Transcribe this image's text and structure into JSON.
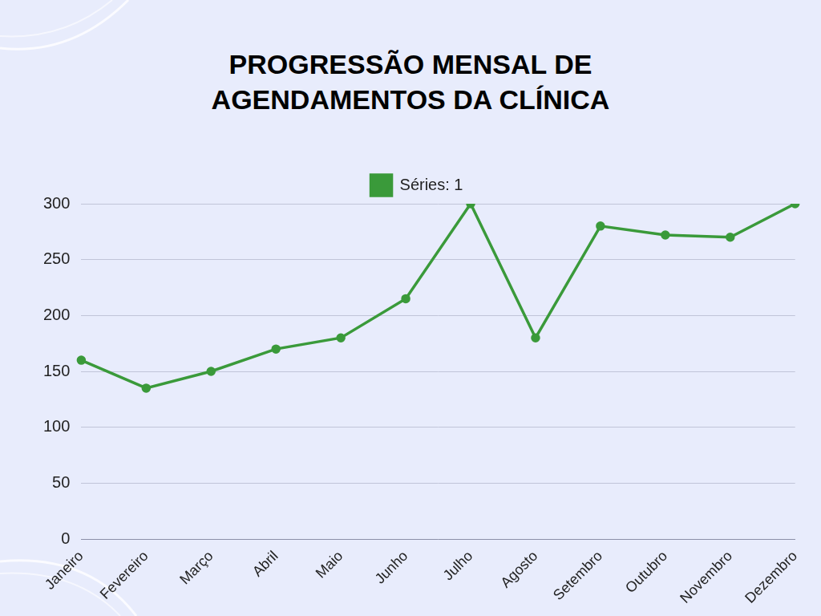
{
  "chart_data": {
    "type": "line",
    "title": "PROGRESSÃO MENSAL DE AGENDAMENTOS DA CLÍNICA",
    "categories": [
      "Janeiro",
      "Fevereiro",
      "Março",
      "Abril",
      "Maio",
      "Junho",
      "Julho",
      "Agosto",
      "Setembro",
      "Outubro",
      "Novembro",
      "Dezembro"
    ],
    "series": [
      {
        "name": "Séries: 1",
        "color": "#3a9a3a",
        "values": [
          160,
          135,
          150,
          170,
          180,
          215,
          300,
          180,
          280,
          272,
          270,
          300
        ]
      }
    ],
    "ylim": [
      0,
      300
    ],
    "yticks": [
      0,
      50,
      100,
      150,
      200,
      250,
      300
    ],
    "grid": true,
    "legend": "top"
  }
}
